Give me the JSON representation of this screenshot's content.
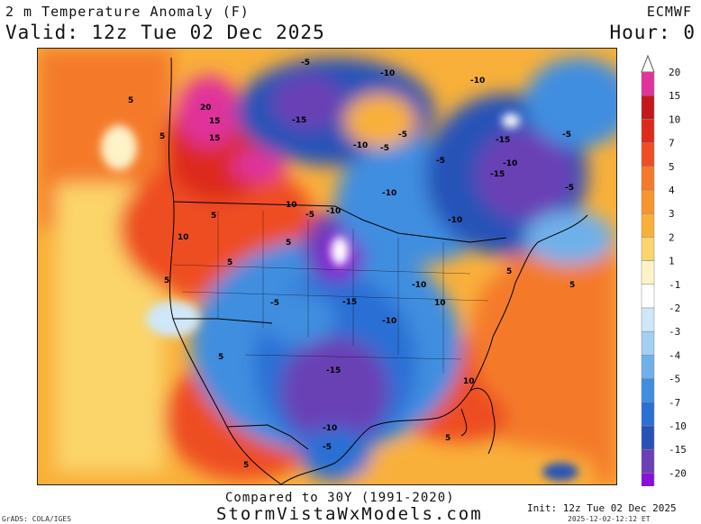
{
  "header": {
    "title": "2 m Temperature Anomaly (F)",
    "valid": "Valid: 12z Tue 02 Dec 2025",
    "model": "ECMWF",
    "hour": "Hour: 0"
  },
  "footer": {
    "compared": "Compared to 30Y (1991-2020)",
    "site": "StormVistaWxModels.com",
    "init": "Init: 12z Tue 02 Dec 2025",
    "stamp": "2025-12-02-12:12 ET",
    "grads": "GrADS: COLA/IGES"
  },
  "colorbar": {
    "levels": [
      {
        "label": "20",
        "color": "#e0339b"
      },
      {
        "label": "15",
        "color": "#c4161c"
      },
      {
        "label": "10",
        "color": "#dd2a1c"
      },
      {
        "label": "7",
        "color": "#ee4d23"
      },
      {
        "label": "5",
        "color": "#f47a2b"
      },
      {
        "label": "4",
        "color": "#f7962f"
      },
      {
        "label": "3",
        "color": "#f9b03a"
      },
      {
        "label": "2",
        "color": "#fbd46a"
      },
      {
        "label": "1",
        "color": "#fdf3c8"
      },
      {
        "label": "-1",
        "color": "#ffffff"
      },
      {
        "label": "-2",
        "color": "#cfe7f9"
      },
      {
        "label": "-3",
        "color": "#a3cff3"
      },
      {
        "label": "-4",
        "color": "#6fb0ea"
      },
      {
        "label": "-5",
        "color": "#3f8ee0"
      },
      {
        "label": "-7",
        "color": "#2a6fd4"
      },
      {
        "label": "-10",
        "color": "#2852b8"
      },
      {
        "label": "-15",
        "color": "#6b3fb5"
      },
      {
        "label": "-20",
        "color": "#8a10d8"
      }
    ]
  },
  "map_labels": [
    "-5",
    "-10",
    "-15",
    "-5",
    "-10",
    "-15",
    "-5",
    "-10",
    "-5",
    "-10",
    "-15",
    "-10",
    "-5",
    "-10",
    "-15",
    "-10",
    "-5",
    "5",
    "10",
    "15",
    "20",
    "15",
    "5",
    "10",
    "5",
    "5",
    "5",
    "5",
    "10",
    "5",
    "5",
    "-10",
    "-5",
    "5",
    "10",
    "5",
    "5",
    "-5",
    "-10",
    "-15",
    "-10",
    "-5"
  ]
}
